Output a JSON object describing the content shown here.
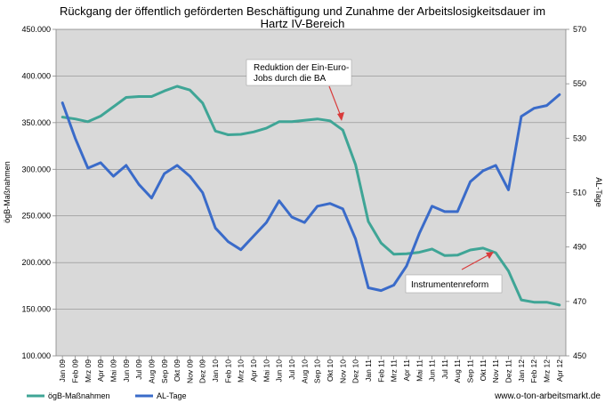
{
  "chart_data": {
    "type": "line",
    "title": "Rückgang der öffentlich geförderten Beschäftigung und Zunahme der Arbeitslosigkeitsdauer im",
    "title_line2": "Hartz IV-Bereich",
    "ylabel": "ögB-Maßnahmen",
    "y2label": "AL-Tage",
    "ylim": [
      100000,
      450000
    ],
    "y_ticks": [
      "100.000",
      "150.000",
      "200.000",
      "250.000",
      "300.000",
      "350.000",
      "400.000",
      "450.000"
    ],
    "y2lim": [
      450,
      570
    ],
    "y2_ticks": [
      "450",
      "470",
      "490",
      "510",
      "530",
      "550",
      "570"
    ],
    "categories": [
      "Jan 09",
      "Feb 09",
      "Mrz 09",
      "Apr 09",
      "Mai 09",
      "Jun 09",
      "Jul 09",
      "Aug 09",
      "Sep 09",
      "Okt 09",
      "Nov 09",
      "Dez 09",
      "Jan 10",
      "Feb 10",
      "Mrz 10",
      "Apr 10",
      "Mai 10",
      "Jun 10",
      "Jul 10",
      "Aug 10",
      "Sep 10",
      "Okt 10",
      "Nov 10",
      "Dez 10",
      "Jan 11",
      "Feb 11",
      "Mrz 11",
      "Apr 11",
      "Mai 11",
      "Jun 11",
      "Jul 11",
      "Aug 11",
      "Sep 11",
      "Okt 11",
      "Nov 11",
      "Dez 11",
      "Jan 12",
      "Feb 12",
      "Mrz 12",
      "Apr 12"
    ],
    "x_labels": [
      "Jan 09",
      "Mrz 09",
      "Mai 09",
      "Jul 09",
      "Sep 09",
      "Nov 09",
      "Jan 10",
      "Mrz 10",
      "Mai 10",
      "Jul 10",
      "Sep 10",
      "Nov 10",
      "Jan 11",
      "Mrz 11",
      "Mai 11",
      "Jul 11",
      "Sep 11",
      "Nov 11",
      "Jan 12",
      "Mrz 12"
    ],
    "x_labels_tick": [
      "Feb 09",
      "Apr 09",
      "Jun 09",
      "Aug 09",
      "Okt 09",
      "Dez 09",
      "Feb 10",
      "Apr 10",
      "Jun 10",
      "Aug 10",
      "Okt 10",
      "Dez 10",
      "Feb 11",
      "Apr 11",
      "Jun 11",
      "Aug 11",
      "Okt 11",
      "Dez 11",
      "Feb 12",
      "Apr 12"
    ],
    "series": [
      {
        "name": "ögB-Maßnahmen",
        "axis": "left",
        "color": "#3fa596",
        "values": [
          356000,
          354000,
          351000,
          357000,
          367000,
          377000,
          378000,
          378000,
          384000,
          389000,
          385000,
          371000,
          341000,
          337000,
          337500,
          340000,
          344000,
          351000,
          351000,
          352500,
          354000,
          352000,
          342000,
          305000,
          244000,
          221000,
          209000,
          209500,
          211000,
          214500,
          207500,
          208000,
          213500,
          215500,
          210500,
          191000,
          160000,
          157500,
          157500,
          154500
        ]
      },
      {
        "name": "AL-Tage",
        "axis": "right",
        "color": "#3a6bc9",
        "values": [
          543,
          530,
          519,
          521,
          516,
          520,
          513,
          508,
          517,
          520,
          516,
          510,
          497,
          492,
          489,
          494,
          499,
          507,
          501,
          499,
          505,
          506,
          504,
          493,
          475,
          474,
          476,
          483,
          495,
          505,
          503,
          503,
          514,
          518,
          520,
          511,
          538,
          541,
          542,
          546
        ]
      }
    ],
    "annotations": [
      {
        "text_lines": [
          "Reduktion der Ein-Euro-",
          "Jobs durch die BA"
        ]
      },
      {
        "text_lines": [
          "Instrumentenreform"
        ]
      }
    ],
    "legend": [
      "ögB-Maßnahmen",
      "AL-Tage"
    ],
    "legend_position": "bottom-left",
    "grid": true
  },
  "source_text": "www.o-ton-arbeitsmarkt.de"
}
